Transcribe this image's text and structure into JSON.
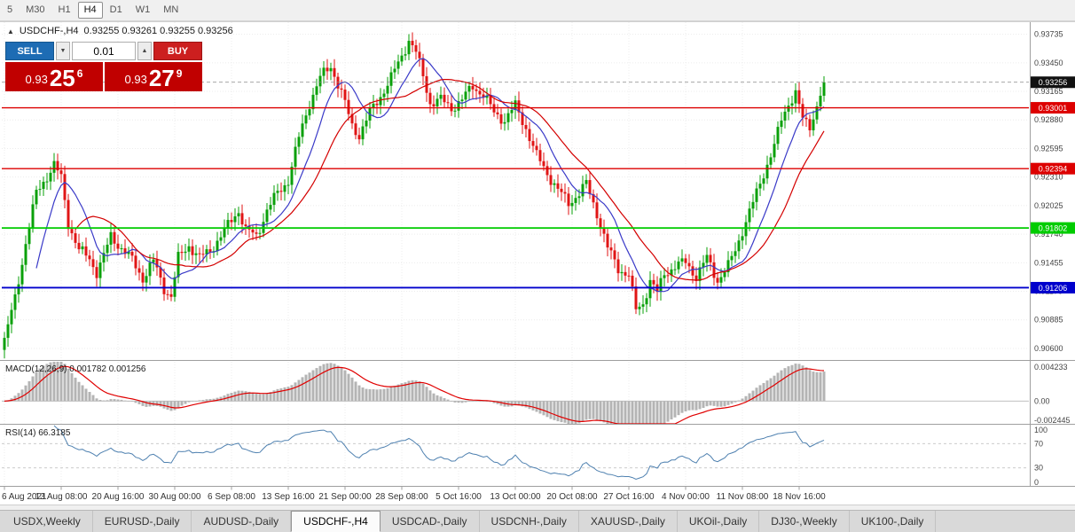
{
  "toolbar": {
    "timeframes": [
      "5",
      "M30",
      "H1",
      "H4",
      "D1",
      "W1",
      "MN"
    ],
    "active_timeframe": "H4"
  },
  "chart": {
    "collapse_icon": "▲",
    "title": "USDCHF-,H4",
    "ohlc": "0.93255 0.93261 0.93255 0.93256"
  },
  "one_click": {
    "sell_label": "SELL",
    "buy_label": "BUY",
    "volume": "0.01",
    "spinner_down": "▼",
    "spinner_up": "▲",
    "sell_price_prefix": "0.93",
    "sell_price_big": "25",
    "sell_price_sup": "6",
    "buy_price_prefix": "0.93",
    "buy_price_big": "27",
    "buy_price_sup": "9"
  },
  "indicators": {
    "macd_label": "MACD(12,26,9) 0.001782 0.001256",
    "rsi_label": "RSI(14) 66.3185"
  },
  "axes": {
    "price_ticks": [
      0.93735,
      0.9345,
      0.93165,
      0.9288,
      0.92595,
      0.9231,
      0.92025,
      0.9174,
      0.91455,
      0.9117,
      0.90885,
      0.906
    ],
    "macd_ticks": {
      "top": "0.004233",
      "zero": "0.00",
      "bottom": "-0.002445"
    },
    "rsi_ticks": [
      "100",
      "70",
      "30",
      "0"
    ],
    "dates": [
      "6 Aug 2021",
      "13 Aug 08:00",
      "20 Aug 16:00",
      "30 Aug 00:00",
      "6 Sep 08:00",
      "13 Sep 16:00",
      "21 Sep 00:00",
      "28 Sep 08:00",
      "5 Oct 16:00",
      "13 Oct 00:00",
      "20 Oct 08:00",
      "27 Oct 16:00",
      "4 Nov 00:00",
      "11 Nov 08:00",
      "18 Nov 16:00"
    ]
  },
  "levels": [
    {
      "price": 0.93001,
      "label": "0.93001",
      "color": "#dd0000"
    },
    {
      "price": 0.92394,
      "label": "0.92394",
      "color": "#dd0000"
    },
    {
      "price": 0.91802,
      "label": "0.91802",
      "color": "#00cc00"
    },
    {
      "price": 0.91206,
      "label": "0.91206",
      "color": "#0000cc"
    }
  ],
  "current_price": {
    "value": 0.93256,
    "label": "0.93256",
    "box_color": "#111111"
  },
  "chart_data": {
    "type": "candlestick",
    "symbol": "USDCHF-",
    "timeframe": "H4",
    "n_bars": 232,
    "bars_per_date_tick": 16,
    "price_range": [
      0.9052,
      0.9382
    ],
    "macd_range": [
      -0.002445,
      0.004233
    ],
    "price_keypoints": [
      [
        0,
        0.9068
      ],
      [
        3,
        0.911
      ],
      [
        6,
        0.9165
      ],
      [
        9,
        0.9215
      ],
      [
        12,
        0.9232
      ],
      [
        14,
        0.9243
      ],
      [
        16,
        0.923
      ],
      [
        18,
        0.9185
      ],
      [
        21,
        0.9158
      ],
      [
        24,
        0.915
      ],
      [
        26,
        0.9136
      ],
      [
        28,
        0.9152
      ],
      [
        30,
        0.9172
      ],
      [
        33,
        0.916
      ],
      [
        36,
        0.9148
      ],
      [
        39,
        0.913
      ],
      [
        42,
        0.9147
      ],
      [
        45,
        0.912
      ],
      [
        47,
        0.9112
      ],
      [
        49,
        0.915
      ],
      [
        52,
        0.9163
      ],
      [
        55,
        0.915
      ],
      [
        58,
        0.9158
      ],
      [
        61,
        0.9172
      ],
      [
        64,
        0.9188
      ],
      [
        66,
        0.9198
      ],
      [
        68,
        0.9178
      ],
      [
        71,
        0.9172
      ],
      [
        74,
        0.9198
      ],
      [
        77,
        0.9215
      ],
      [
        80,
        0.9228
      ],
      [
        83,
        0.927
      ],
      [
        86,
        0.9305
      ],
      [
        89,
        0.933
      ],
      [
        92,
        0.9342
      ],
      [
        95,
        0.9315
      ],
      [
        98,
        0.9282
      ],
      [
        100,
        0.9273
      ],
      [
        103,
        0.9295
      ],
      [
        106,
        0.9312
      ],
      [
        109,
        0.933
      ],
      [
        112,
        0.9352
      ],
      [
        114,
        0.9368
      ],
      [
        116,
        0.9355
      ],
      [
        118,
        0.9332
      ],
      [
        120,
        0.9305
      ],
      [
        123,
        0.9308
      ],
      [
        126,
        0.93
      ],
      [
        129,
        0.9308
      ],
      [
        132,
        0.9322
      ],
      [
        135,
        0.9313
      ],
      [
        138,
        0.9295
      ],
      [
        141,
        0.9288
      ],
      [
        144,
        0.9302
      ],
      [
        147,
        0.928
      ],
      [
        150,
        0.9252
      ],
      [
        153,
        0.9235
      ],
      [
        156,
        0.9218
      ],
      [
        159,
        0.9205
      ],
      [
        162,
        0.9215
      ],
      [
        164,
        0.9224
      ],
      [
        167,
        0.9195
      ],
      [
        170,
        0.916
      ],
      [
        173,
        0.914
      ],
      [
        176,
        0.9133
      ],
      [
        178,
        0.9098
      ],
      [
        180,
        0.9105
      ],
      [
        182,
        0.9128
      ],
      [
        184,
        0.9115
      ],
      [
        186,
        0.9135
      ],
      [
        189,
        0.9142
      ],
      [
        192,
        0.9146
      ],
      [
        195,
        0.9132
      ],
      [
        198,
        0.915
      ],
      [
        201,
        0.9128
      ],
      [
        204,
        0.9142
      ],
      [
        206,
        0.9158
      ],
      [
        208,
        0.9178
      ],
      [
        211,
        0.9205
      ],
      [
        214,
        0.9235
      ],
      [
        217,
        0.9262
      ],
      [
        219,
        0.9288
      ],
      [
        221,
        0.9305
      ],
      [
        223,
        0.9315
      ],
      [
        225,
        0.9288
      ],
      [
        227,
        0.9282
      ],
      [
        229,
        0.9302
      ],
      [
        231,
        0.93256
      ]
    ],
    "indicator_meta": {
      "macd": {
        "fast": 12,
        "slow": 26,
        "signal": 9,
        "current": 0.001782,
        "current_signal": 0.001256
      },
      "rsi": {
        "period": 14,
        "current": 66.3185,
        "levels": [
          70,
          30
        ]
      },
      "ma_fast_period": 10,
      "ma_slow_period": 21
    },
    "colors": {
      "up": "#0aa00a",
      "down": "#e01515",
      "ma_fast": "#3a3ac8",
      "ma_slow": "#d40000",
      "macd_hist": "#b4b4b4",
      "macd_signal": "#e00000",
      "rsi_line": "#4f81b0",
      "grid": "#ececec",
      "axis_text": "#444444",
      "current_line": "#888888"
    }
  },
  "tabs": {
    "items": [
      "USDX,Weekly",
      "EURUSD-,Daily",
      "AUDUSD-,Daily",
      "USDCHF-,H4",
      "USDCAD-,Daily",
      "USDCNH-,Daily",
      "XAUUSD-,Daily",
      "UKOil-,Daily",
      "DJ30-,Weekly",
      "UK100-,Daily"
    ],
    "active": "USDCHF-,H4"
  }
}
